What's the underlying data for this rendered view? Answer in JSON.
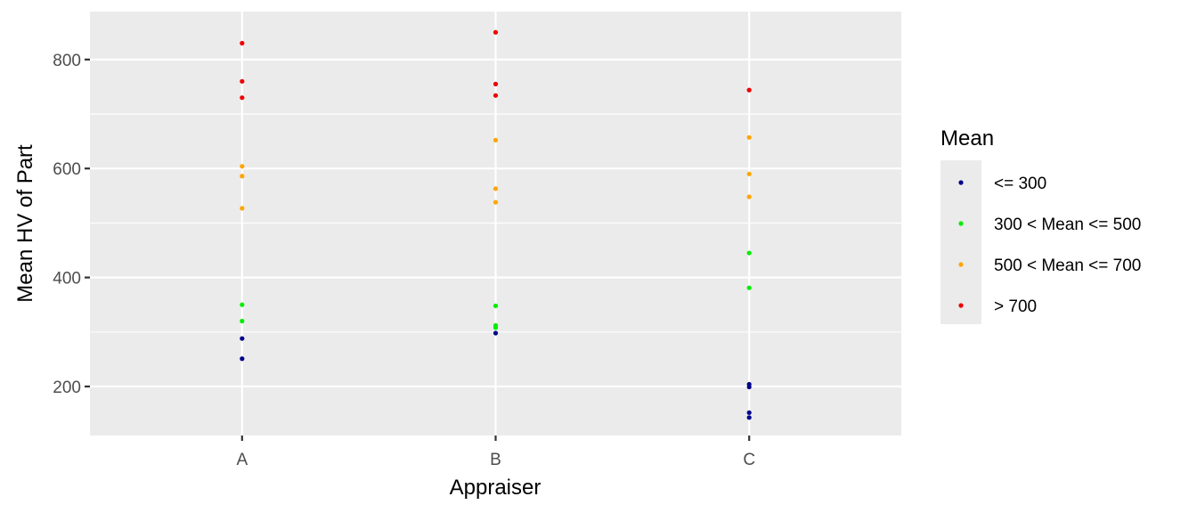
{
  "chart_data": {
    "type": "scatter",
    "xlabel": "Appraiser",
    "ylabel": "Mean HV of Part",
    "categories": [
      "A",
      "B",
      "C"
    ],
    "ylim": [
      110,
      888
    ],
    "yticks": [
      200,
      400,
      600,
      800
    ],
    "grid": true,
    "legend": {
      "title": "Mean",
      "placement": "right"
    },
    "series": [
      {
        "name": "<= 300",
        "color": "#00008b",
        "points": [
          {
            "x": "A",
            "y": 288
          },
          {
            "x": "A",
            "y": 251
          },
          {
            "x": "B",
            "y": 298
          },
          {
            "x": "C",
            "y": 204
          },
          {
            "x": "C",
            "y": 199
          },
          {
            "x": "C",
            "y": 152
          },
          {
            "x": "C",
            "y": 143
          }
        ]
      },
      {
        "name": "300 < Mean <= 500",
        "color": "#00ee00",
        "points": [
          {
            "x": "A",
            "y": 350
          },
          {
            "x": "A",
            "y": 320
          },
          {
            "x": "B",
            "y": 348
          },
          {
            "x": "B",
            "y": 312
          },
          {
            "x": "B",
            "y": 308
          },
          {
            "x": "C",
            "y": 445
          },
          {
            "x": "C",
            "y": 381
          }
        ]
      },
      {
        "name": "500 < Mean <= 700",
        "color": "#ffa500",
        "points": [
          {
            "x": "A",
            "y": 604
          },
          {
            "x": "A",
            "y": 586
          },
          {
            "x": "A",
            "y": 527
          },
          {
            "x": "B",
            "y": 652
          },
          {
            "x": "B",
            "y": 563
          },
          {
            "x": "B",
            "y": 538
          },
          {
            "x": "C",
            "y": 657
          },
          {
            "x": "C",
            "y": 590
          },
          {
            "x": "C",
            "y": 548
          }
        ]
      },
      {
        "name": "> 700",
        "color": "#ee0000",
        "points": [
          {
            "x": "A",
            "y": 830
          },
          {
            "x": "A",
            "y": 760
          },
          {
            "x": "A",
            "y": 730
          },
          {
            "x": "B",
            "y": 850
          },
          {
            "x": "B",
            "y": 755
          },
          {
            "x": "B",
            "y": 734
          },
          {
            "x": "C",
            "y": 744
          }
        ]
      }
    ]
  }
}
